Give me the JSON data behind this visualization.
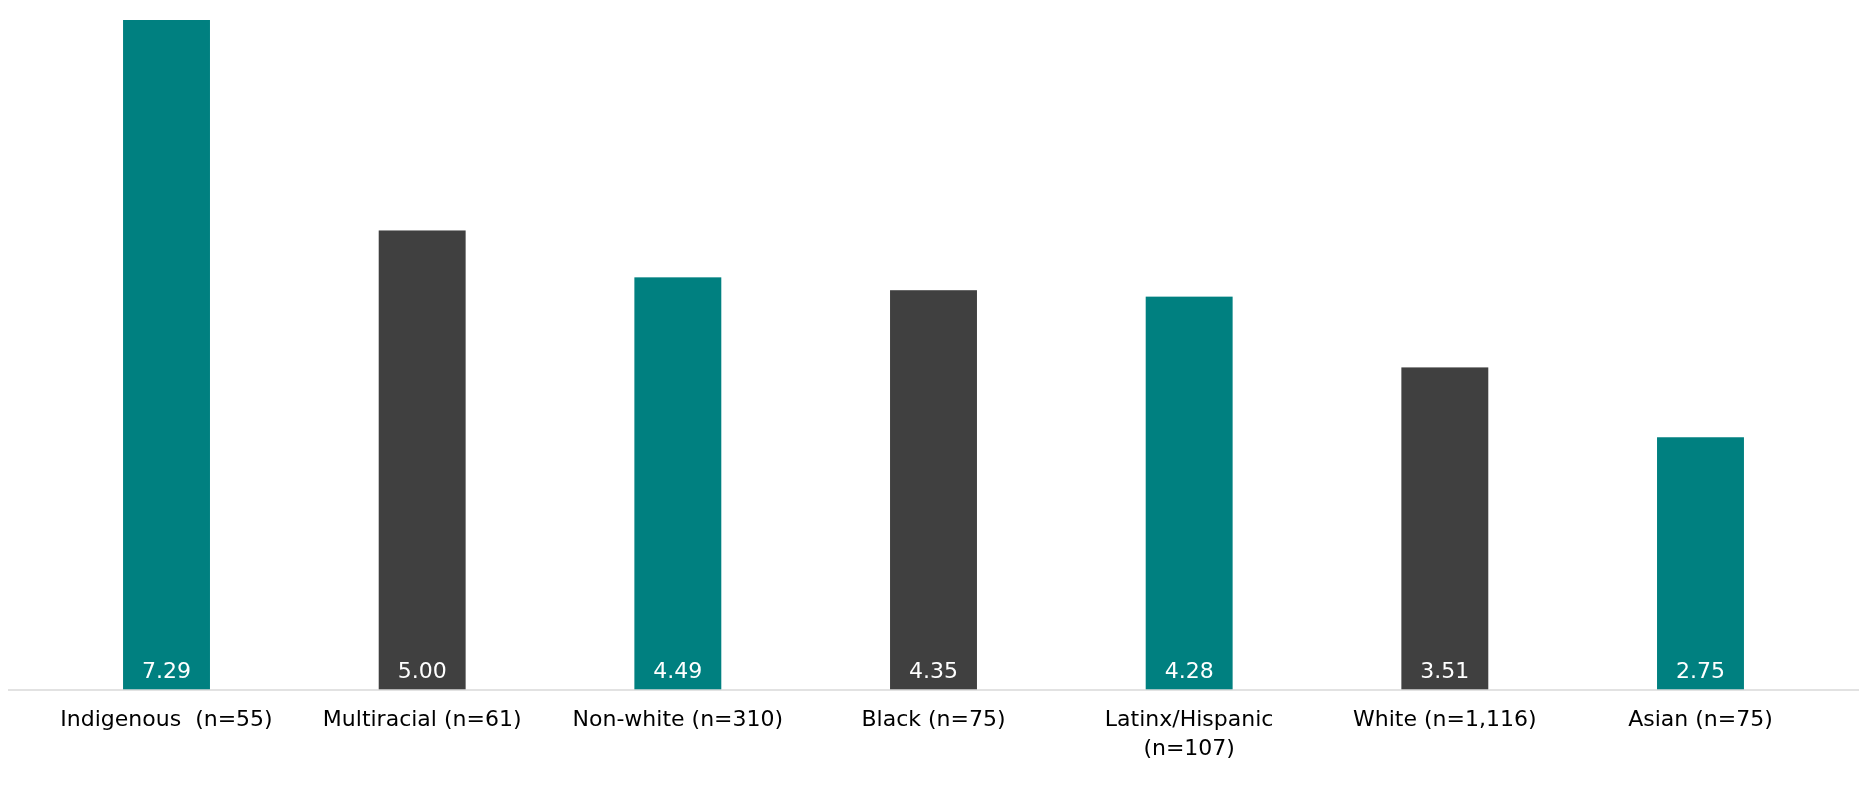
{
  "chart_data": {
    "type": "bar",
    "categories": [
      "Indigenous  (n=55)",
      "Multiracial (n=61)",
      "Non-white (n=310)",
      "Black (n=75)",
      "Latinx/Hispanic (n=107)",
      "White (n=1,116)",
      "Asian (n=75)"
    ],
    "values": [
      7.29,
      5.0,
      4.49,
      4.35,
      4.28,
      3.51,
      2.75
    ],
    "value_labels": [
      "7.29",
      "5.00",
      "4.49",
      "4.35",
      "4.28",
      "3.51",
      "2.75"
    ],
    "colors": [
      "#008080",
      "#404040",
      "#008080",
      "#404040",
      "#008080",
      "#404040",
      "#008080"
    ]
  }
}
